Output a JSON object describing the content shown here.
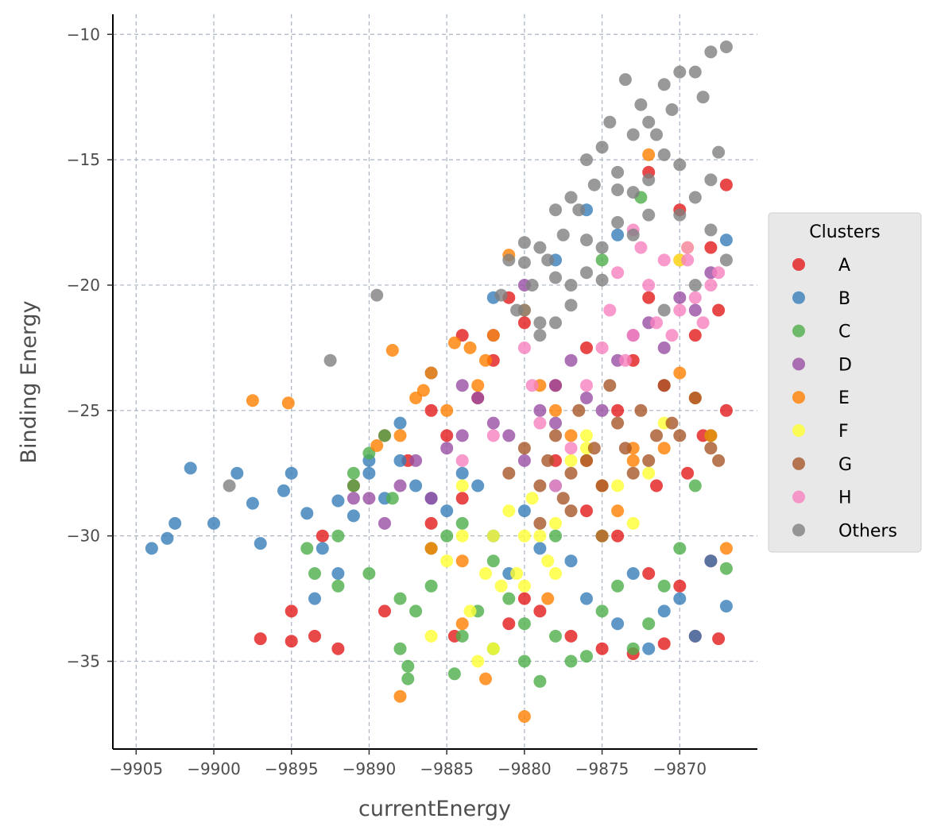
{
  "chart_data": {
    "type": "scatter",
    "title": "",
    "xlabel": "currentEnergy",
    "ylabel": "Binding Energy",
    "xlim": [
      -9906.5,
      -9865
    ],
    "ylim": [
      -38.5,
      -9.2
    ],
    "xticks": [
      -9905,
      -9900,
      -9895,
      -9890,
      -9885,
      -9880,
      -9875,
      -9870
    ],
    "yticks": [
      -10,
      -15,
      -20,
      -25,
      -30,
      -35
    ],
    "xtick_labels": [
      "−9905",
      "−9900",
      "−9895",
      "−9890",
      "−9885",
      "−9880",
      "−9875",
      "−9870"
    ],
    "ytick_labels": [
      "−10",
      "−15",
      "−20",
      "−25",
      "−30",
      "−35"
    ],
    "grid": true,
    "grid_style": "dashed",
    "legend": {
      "title": "Clusters",
      "placement": "right"
    },
    "series": [
      {
        "name": "A",
        "color": "#e41a1c",
        "x": [
          -9867,
          -9868,
          -9867.5,
          -9870,
          -9869,
          -9871,
          -9872,
          -9868.5,
          -9873,
          -9874,
          -9876,
          -9878,
          -9880,
          -9882,
          -9884,
          -9886,
          -9887.5,
          -9889,
          -9891,
          -9893,
          -9895,
          -9897,
          -9895,
          -9893.5,
          -9892,
          -9889,
          -9884.5,
          -9881,
          -9879,
          -9877,
          -9875,
          -9873,
          -9871,
          -9869,
          -9867.5,
          -9885,
          -9883,
          -9881,
          -9878,
          -9876,
          -9874,
          -9872,
          -9870,
          -9868,
          -9880,
          -9884,
          -9886,
          -9872,
          -9870,
          -9867,
          -9869.5,
          -9871.5
        ],
        "y": [
          -16,
          -18.5,
          -21,
          -19,
          -22,
          -24,
          -20.5,
          -26,
          -23,
          -25,
          -22.5,
          -24,
          -21.5,
          -23,
          -22,
          -25,
          -27,
          -26,
          -28,
          -30,
          -33,
          -34.1,
          -34.2,
          -34,
          -34.5,
          -33,
          -34,
          -33.5,
          -33,
          -34,
          -34.5,
          -34.7,
          -34.3,
          -34,
          -34.1,
          -26,
          -24.5,
          -20.5,
          -27,
          -29,
          -30,
          -31.5,
          -32,
          -31,
          -32.5,
          -28.5,
          -29.5,
          -15.5,
          -17,
          -25,
          -27.5,
          -28
        ]
      },
      {
        "name": "B",
        "color": "#377eb8",
        "x": [
          -9904,
          -9903,
          -9902.5,
          -9901.5,
          -9900,
          -9898.5,
          -9897.5,
          -9897,
          -9895.5,
          -9895,
          -9894,
          -9893,
          -9892,
          -9891,
          -9890,
          -9889,
          -9888,
          -9887,
          -9886,
          -9885,
          -9884,
          -9883,
          -9882,
          -9881,
          -9880,
          -9879,
          -9878,
          -9877,
          -9876,
          -9875,
          -9874,
          -9873,
          -9872,
          -9871,
          -9870,
          -9869,
          -9868,
          -9867,
          -9876,
          -9874,
          -9882,
          -9878,
          -9886,
          -9888,
          -9890,
          -9867,
          -9892,
          -9893.5
        ],
        "y": [
          -30.5,
          -30.1,
          -29.5,
          -27.3,
          -29.5,
          -27.5,
          -28.7,
          -30.3,
          -28.2,
          -27.5,
          -29.1,
          -30.5,
          -28.6,
          -29.2,
          -27.5,
          -28.5,
          -27,
          -28,
          -28.5,
          -29,
          -27.5,
          -28,
          -30,
          -31.5,
          -29,
          -30.5,
          -28,
          -31,
          -32.5,
          -30,
          -33.5,
          -31.5,
          -34.5,
          -33,
          -32.5,
          -34,
          -31,
          -32.8,
          -17,
          -18,
          -20.5,
          -19,
          -23.5,
          -25.5,
          -27,
          -18.2,
          -31.5,
          -32.5
        ]
      },
      {
        "name": "C",
        "color": "#4daf4a",
        "x": [
          -9894,
          -9893.5,
          -9892,
          -9891,
          -9890,
          -9889,
          -9888.5,
          -9888,
          -9887.5,
          -9887,
          -9886,
          -9885,
          -9884.5,
          -9884,
          -9883,
          -9882,
          -9881,
          -9880,
          -9879,
          -9878,
          -9877,
          -9876,
          -9875,
          -9874,
          -9873,
          -9872,
          -9871,
          -9870,
          -9869,
          -9868,
          -9867,
          -9886,
          -9884,
          -9882,
          -9880,
          -9878,
          -9888,
          -9890,
          -9892,
          -9891,
          -9887.5,
          -9875,
          -9872.5
        ],
        "y": [
          -30.5,
          -31.5,
          -32,
          -28,
          -26.7,
          -26,
          -28.5,
          -34.5,
          -35.2,
          -33,
          -32,
          -30,
          -35.5,
          -34,
          -33,
          -34.5,
          -32.5,
          -35,
          -35.8,
          -34,
          -35,
          -34.8,
          -33,
          -32,
          -34.5,
          -33.5,
          -32,
          -30.5,
          -28,
          -26,
          -31.3,
          -30.5,
          -29.5,
          -31,
          -33.5,
          -30,
          -32.5,
          -31.5,
          -30,
          -27.5,
          -35.7,
          -19,
          -16.5
        ]
      },
      {
        "name": "D",
        "color": "#984ea3",
        "x": [
          -9891,
          -9890,
          -9889,
          -9888,
          -9887,
          -9886,
          -9885,
          -9884,
          -9883,
          -9882,
          -9881,
          -9880,
          -9879,
          -9878,
          -9877,
          -9876,
          -9875,
          -9874,
          -9873,
          -9872,
          -9871,
          -9870,
          -9869,
          -9868,
          -9880,
          -9882,
          -9884,
          -9878
        ],
        "y": [
          -28.5,
          -28.5,
          -29.5,
          -28,
          -27,
          -28.5,
          -26.5,
          -26,
          -24.5,
          -25.5,
          -26,
          -27,
          -25,
          -24,
          -23,
          -24.5,
          -25,
          -23,
          -22,
          -21.5,
          -22.5,
          -20.5,
          -21,
          -19.5,
          -20,
          -22,
          -24,
          -25.5
        ]
      },
      {
        "name": "E",
        "color": "#ff7f00",
        "x": [
          -9897.5,
          -9895.2,
          -9889.5,
          -9888.5,
          -9888,
          -9887,
          -9886.5,
          -9886,
          -9885,
          -9884.5,
          -9883.5,
          -9883,
          -9882.5,
          -9882,
          -9881,
          -9880,
          -9879,
          -9878,
          -9877,
          -9876,
          -9875,
          -9874,
          -9873,
          -9872,
          -9871,
          -9870,
          -9869,
          -9868,
          -9867,
          -9880,
          -9882.5,
          -9884,
          -9886,
          -9888,
          -9873,
          -9884,
          -9878.5
        ],
        "y": [
          -24.6,
          -24.7,
          -26.4,
          -22.6,
          -26,
          -24.5,
          -24.2,
          -23.5,
          -25,
          -22.3,
          -22.5,
          -24,
          -23,
          -22,
          -18.8,
          -21,
          -24,
          -25,
          -26,
          -27,
          -28,
          -29,
          -27,
          -14.8,
          -26.5,
          -23.5,
          -24.5,
          -26,
          -30.5,
          -37.2,
          -35.7,
          -31,
          -30.5,
          -36.4,
          -26.5,
          -33.5,
          -32.5
        ]
      },
      {
        "name": "F",
        "color": "#ffff33",
        "x": [
          -9886,
          -9885,
          -9884,
          -9883.5,
          -9883,
          -9882.5,
          -9882,
          -9881.5,
          -9881,
          -9880.5,
          -9880,
          -9879.5,
          -9879,
          -9878.5,
          -9878,
          -9877,
          -9876,
          -9875,
          -9874,
          -9873,
          -9872,
          -9871,
          -9870,
          -9869.5,
          -9884,
          -9882,
          -9880,
          -9878,
          -9876
        ],
        "y": [
          -34,
          -31,
          -30,
          -33,
          -35,
          -31.5,
          -30,
          -32,
          -29,
          -31.5,
          -30,
          -28.5,
          -30,
          -31,
          -29.5,
          -27,
          -26,
          -30,
          -28,
          -29.5,
          -27.5,
          -25.5,
          -19,
          -18.5,
          -28,
          -34.5,
          -32,
          -31.5,
          -26.5
        ]
      },
      {
        "name": "G",
        "color": "#a65628",
        "x": [
          -9881,
          -9880,
          -9879,
          -9878.5,
          -9878,
          -9877.5,
          -9877,
          -9876.5,
          -9876,
          -9875.5,
          -9875,
          -9874.5,
          -9874,
          -9873.5,
          -9873,
          -9872.5,
          -9872,
          -9871.5,
          -9871,
          -9870.5,
          -9870,
          -9869,
          -9868,
          -9867.5,
          -9879,
          -9877,
          -9875
        ],
        "y": [
          -27.5,
          -26.5,
          -28,
          -27,
          -26,
          -28.5,
          -27.5,
          -25,
          -27,
          -26.5,
          -28,
          -24,
          -25.5,
          -26.5,
          -27.5,
          -25,
          -27,
          -26,
          -24,
          -25.5,
          -26,
          -24.5,
          -26.5,
          -27,
          -29.5,
          -29,
          -30
        ]
      },
      {
        "name": "H",
        "color": "#f781bf",
        "x": [
          -9884,
          -9882,
          -9880,
          -9879.5,
          -9879,
          -9877,
          -9876,
          -9875,
          -9874.5,
          -9874,
          -9873.5,
          -9873,
          -9872.5,
          -9872,
          -9871.5,
          -9871,
          -9870.5,
          -9870,
          -9869.5,
          -9869,
          -9868.5,
          -9868,
          -9867.5,
          -9878,
          -9873,
          -9869.5
        ],
        "y": [
          -27,
          -26,
          -22.5,
          -24,
          -25.5,
          -26.5,
          -24,
          -22.5,
          -21,
          -19.5,
          -23,
          -22,
          -18.5,
          -20,
          -21.5,
          -19,
          -22,
          -21,
          -19,
          -20.5,
          -21.5,
          -20,
          -19.5,
          -28,
          -17.8,
          -18.5
        ]
      },
      {
        "name": "Others",
        "color": "#808080",
        "x": [
          -9899,
          -9892.5,
          -9889.5,
          -9867,
          -9868,
          -9868.5,
          -9869,
          -9870,
          -9870.5,
          -9871,
          -9871.5,
          -9872,
          -9872.5,
          -9873,
          -9873.5,
          -9874,
          -9874.5,
          -9875,
          -9875.5,
          -9876,
          -9876.5,
          -9877,
          -9877.5,
          -9878,
          -9878.5,
          -9879,
          -9879.5,
          -9880,
          -9880.5,
          -9881,
          -9867.5,
          -9868,
          -9869,
          -9870,
          -9871,
          -9872,
          -9873,
          -9874,
          -9875,
          -9876,
          -9877,
          -9878,
          -9879,
          -9880,
          -9867,
          -9869,
          -9871,
          -9873,
          -9875,
          -9877,
          -9879,
          -9870,
          -9868,
          -9872,
          -9874,
          -9876,
          -9878,
          -9880,
          -9881.5
        ],
        "y": [
          -28,
          -23,
          -20.4,
          -10.5,
          -10.7,
          -12.5,
          -11.5,
          -11.5,
          -13,
          -12,
          -14,
          -13.5,
          -12.8,
          -14,
          -11.8,
          -15.5,
          -13.5,
          -14.5,
          -16,
          -15,
          -17,
          -16.5,
          -18,
          -17,
          -19,
          -18.5,
          -20,
          -18.3,
          -21,
          -19,
          -14.7,
          -15.8,
          -16.5,
          -15.2,
          -14.8,
          -17.2,
          -16.3,
          -17.5,
          -18.5,
          -19.5,
          -20,
          -21.5,
          -22,
          -21,
          -19,
          -20,
          -21,
          -18,
          -19.8,
          -20.8,
          -21.5,
          -17.2,
          -17.8,
          -15.8,
          -16.2,
          -18.2,
          -19.7,
          -19.1,
          -20.4
        ]
      }
    ]
  }
}
